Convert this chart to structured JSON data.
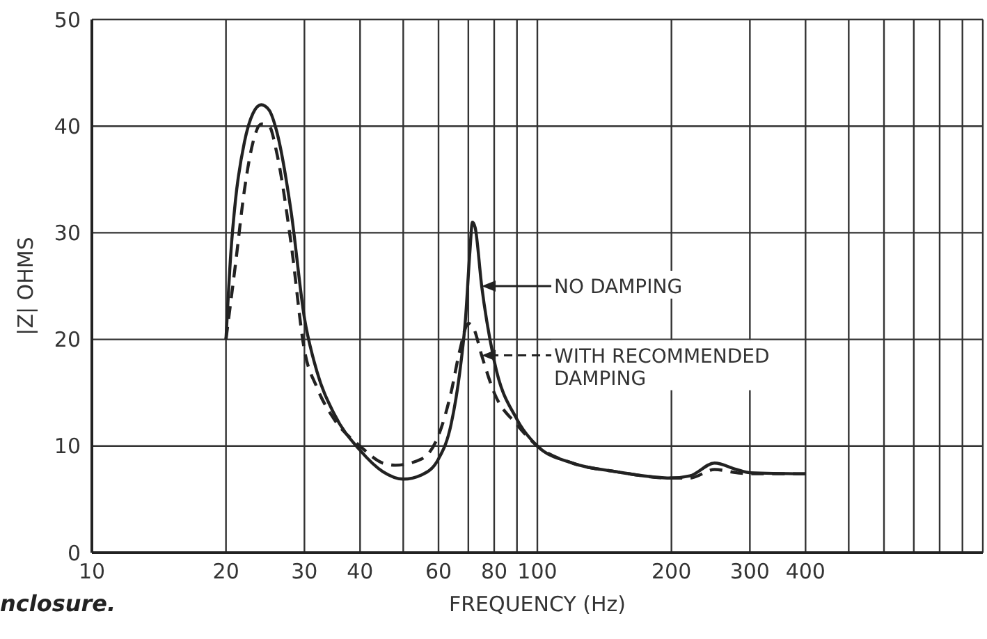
{
  "chart_data": {
    "type": "line",
    "xlabel": "FREQUENCY (Hz)",
    "ylabel": "|Z| OHMS",
    "log": "x",
    "xlim": [
      10,
      1000
    ],
    "xticks": [
      10,
      20,
      30,
      40,
      {
        "value": 50,
        "label": null
      },
      60,
      {
        "value": 70,
        "label": null
      },
      80,
      {
        "value": 90,
        "label": null
      },
      100,
      200,
      300,
      400,
      {
        "value": 500,
        "label": null
      },
      {
        "value": 600,
        "label": null
      },
      {
        "value": 700,
        "label": null
      },
      {
        "value": 800,
        "label": null
      },
      {
        "value": 900,
        "label": null
      }
    ],
    "ylim": [
      0,
      50
    ],
    "yticks": [
      0,
      10,
      20,
      30,
      40,
      50
    ],
    "grid": true,
    "marker": "none",
    "legend": "center",
    "series": [
      {
        "name": "NO DAMPING",
        "color": "#222222",
        "line_style": "solid",
        "x": [
          20,
          20.5,
          21,
          22,
          23,
          24,
          25,
          26,
          28,
          30,
          32,
          35,
          40,
          45,
          50,
          55,
          60,
          64,
          67,
          69,
          70.5,
          71.5,
          72.5,
          75,
          80,
          90,
          100,
          120,
          150,
          200,
          220,
          250,
          280,
          300,
          400
        ],
        "values": [
          20,
          28,
          33,
          38.5,
          41.2,
          42,
          41.5,
          39.5,
          32,
          22,
          17,
          13,
          9.6,
          7.6,
          6.9,
          7.3,
          8.8,
          12,
          17,
          22,
          28,
          31,
          30.5,
          25,
          18,
          12.5,
          10,
          8.4,
          7.6,
          7,
          7.2,
          8.4,
          7.8,
          7.5,
          7.4
        ]
      },
      {
        "name": "WITH RECOMMENDED DAMPING",
        "color": "#222222",
        "line_style": "dashed",
        "x": [
          20,
          21,
          22,
          23,
          24,
          25,
          26,
          28,
          30,
          32,
          35,
          40,
          45,
          48,
          55,
          60,
          64,
          67,
          70,
          72,
          75,
          80,
          90,
          100,
          120,
          150,
          200,
          220,
          250,
          280,
          300,
          400
        ],
        "values": [
          20,
          27,
          34,
          38.5,
          40.2,
          40,
          37.5,
          29,
          19,
          15.5,
          12.5,
          10,
          8.4,
          8.2,
          8.8,
          11,
          15,
          19,
          21.5,
          21,
          18.5,
          15,
          12,
          10,
          8.4,
          7.6,
          7,
          7,
          7.8,
          7.5,
          7.4,
          7.4
        ]
      }
    ],
    "annotations": [
      "nclosure."
    ]
  }
}
